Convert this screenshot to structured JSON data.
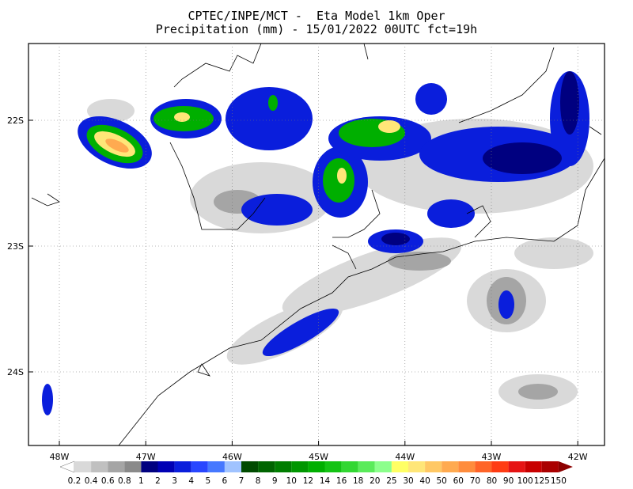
{
  "header": {
    "title": "CPTEC/INPE/MCT -  Eta Model 1km Oper",
    "subtitle": "Precipitation (mm) - 15/01/2022 00UTC fct=19h"
  },
  "map": {
    "lon_labels": [
      "48W",
      "47W",
      "46W",
      "45W",
      "44W",
      "43W",
      "42W"
    ],
    "lat_labels": [
      "22S",
      "23S",
      "24S"
    ]
  },
  "colorbar": {
    "labels": [
      0.2,
      0.4,
      0.6,
      0.8,
      1,
      2,
      3,
      4,
      5,
      6,
      7,
      8,
      9,
      10,
      12,
      14,
      16,
      18,
      20,
      25,
      30,
      40,
      50,
      60,
      70,
      80,
      90,
      100,
      125,
      150
    ],
    "colors": [
      "#ffffff",
      "#d9d9d9",
      "#c0c0c0",
      "#a5a5a5",
      "#8a8a8a",
      "#000080",
      "#0000b4",
      "#0a1edc",
      "#2846ff",
      "#4678ff",
      "#a0c3ff",
      "#004b00",
      "#006400",
      "#007d00",
      "#009600",
      "#00af00",
      "#14c314",
      "#32d732",
      "#5aeb5a",
      "#8cff8c",
      "#ffff64",
      "#ffe678",
      "#ffc864",
      "#ffaa50",
      "#ff8c3c",
      "#ff6428",
      "#ff3c14",
      "#e61414",
      "#c80000",
      "#aa0000",
      "#8c0000"
    ]
  }
}
